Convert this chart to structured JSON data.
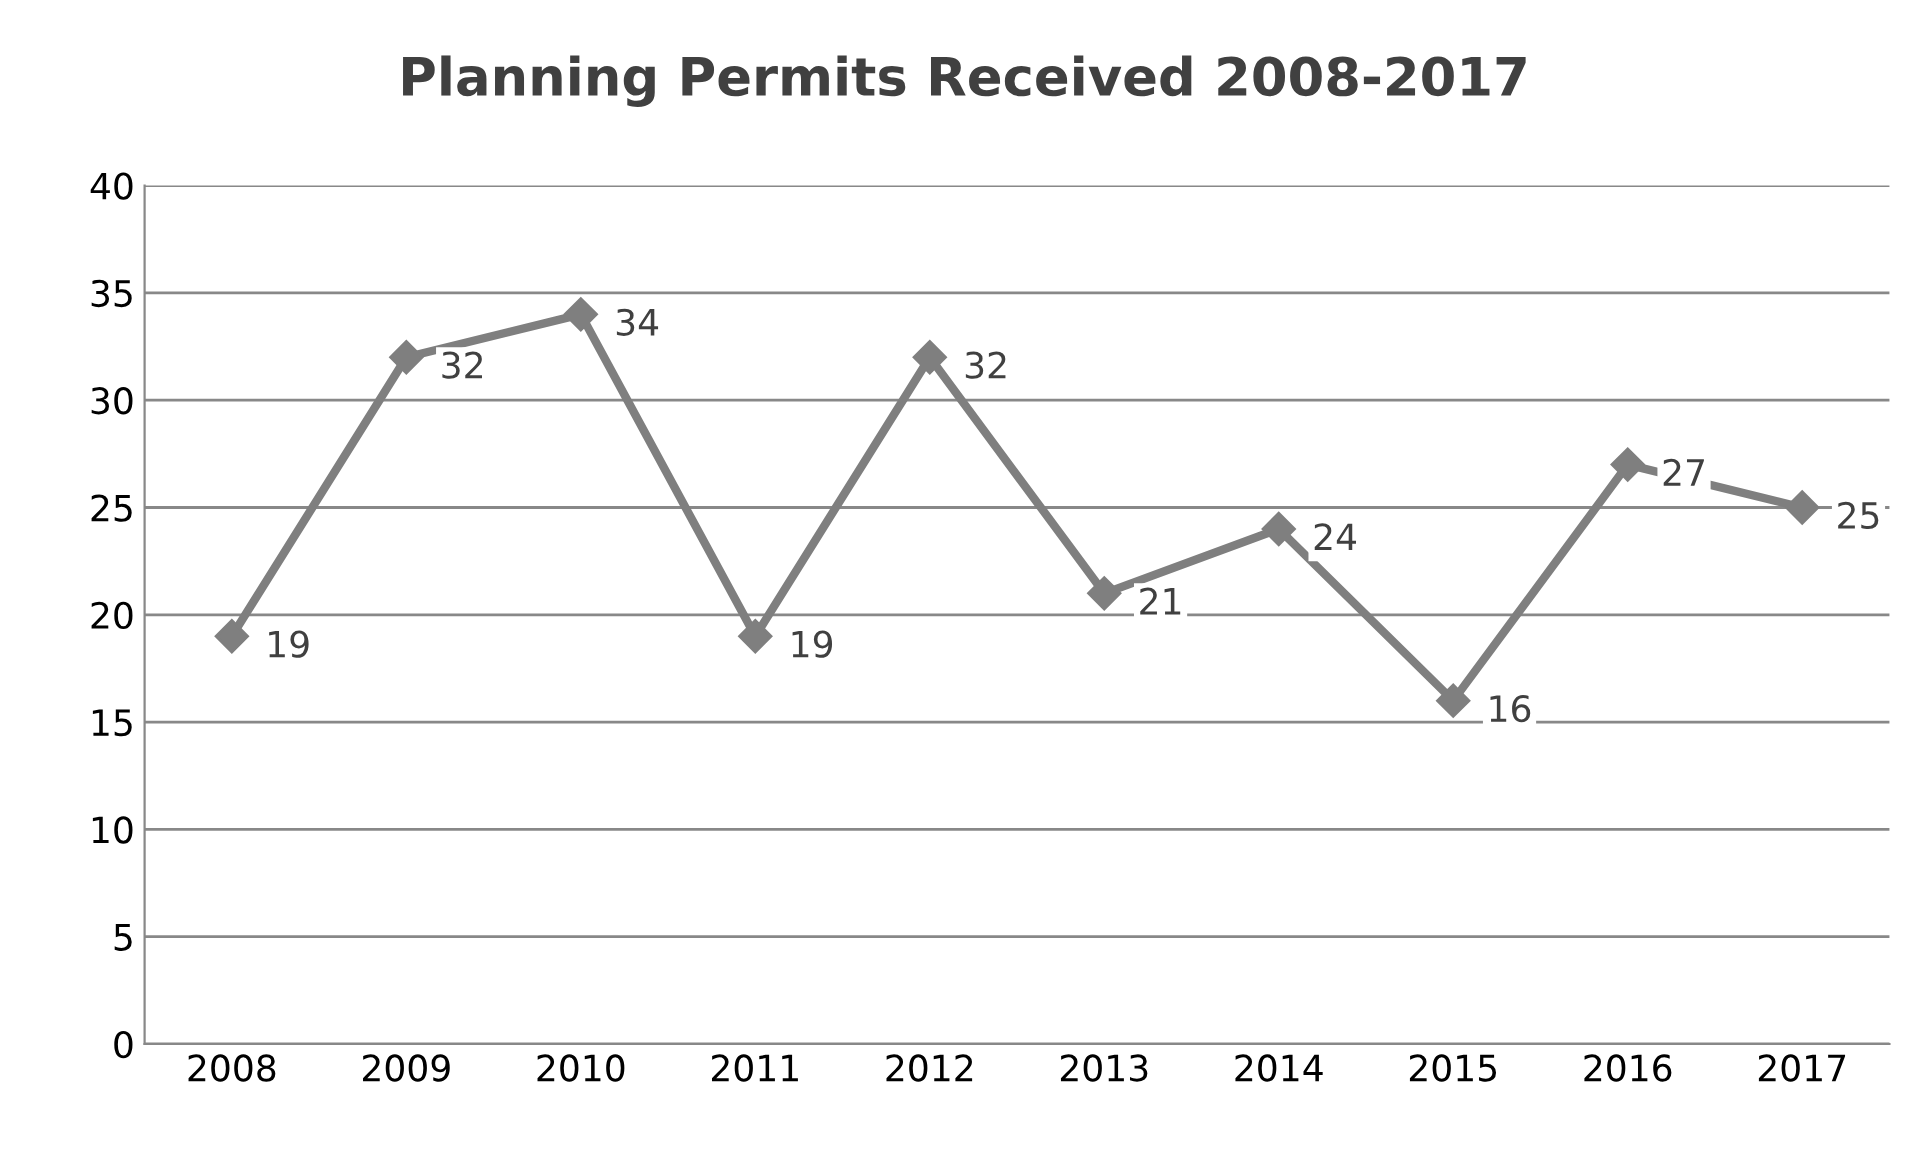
{
  "chart_data": {
    "type": "line",
    "title": "Planning Permits Received 2008-2017",
    "categories": [
      "2008",
      "2009",
      "2010",
      "2011",
      "2012",
      "2013",
      "2014",
      "2015",
      "2016",
      "2017"
    ],
    "values": [
      19,
      32,
      34,
      19,
      32,
      21,
      24,
      16,
      27,
      25
    ],
    "color": "#7f7f7f",
    "marker": "diamond",
    "line_style": "solid",
    "data_labels": true,
    "ylim": [
      0,
      40
    ],
    "yticks": [
      0,
      5,
      10,
      15,
      20,
      25,
      30,
      35,
      40
    ],
    "grid": "y",
    "legend": false
  }
}
